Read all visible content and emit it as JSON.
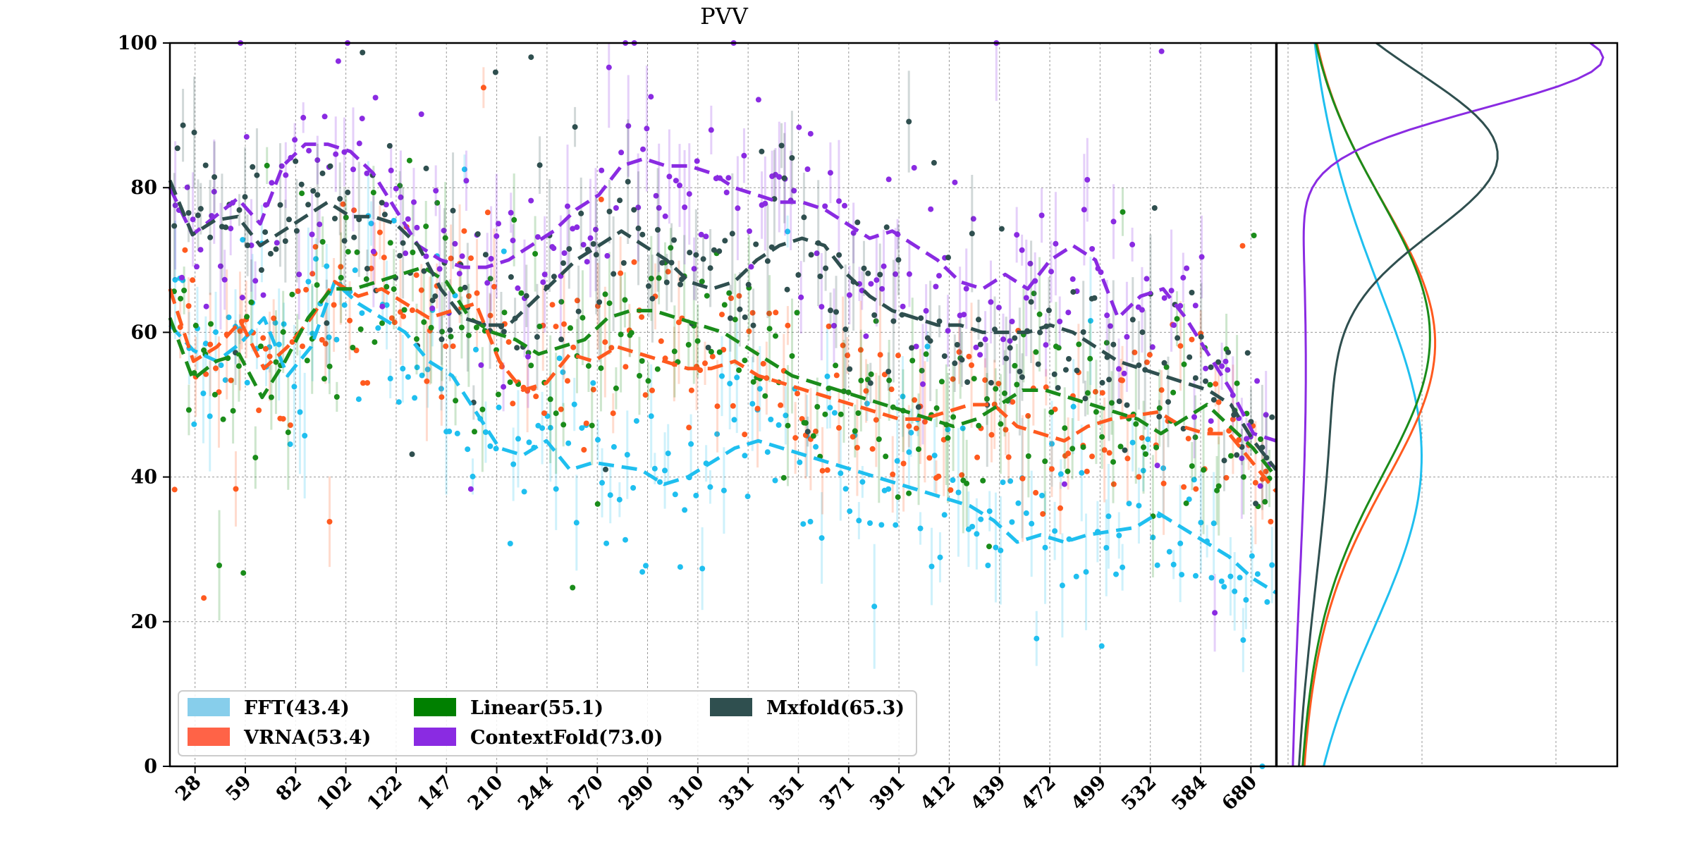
{
  "chart_data": {
    "type": "scatter",
    "title": "PVV",
    "xlabel": "",
    "ylabel": "",
    "ylim": [
      0,
      100
    ],
    "y_ticks": [
      "0",
      "20",
      "40",
      "60",
      "80",
      "100"
    ],
    "x_tick_labels": [
      "28",
      "59",
      "82",
      "102",
      "122",
      "147",
      "210",
      "244",
      "270",
      "290",
      "310",
      "331",
      "351",
      "371",
      "391",
      "412",
      "439",
      "472",
      "499",
      "532",
      "584",
      "680"
    ],
    "grid": true,
    "legend_position": "lower-left",
    "marginal_panel": "kde",
    "series": [
      {
        "name": "FFT(43.4)",
        "color": "#1fbfef",
        "legend_color": "#87ceeb",
        "trend": [
          61.0,
          57.5,
          56.0,
          58.5,
          62.0,
          54.0,
          58.0,
          67.0,
          64.0,
          62.0,
          60.0,
          56.0,
          54.0,
          49.0,
          44.0,
          43.0,
          45.0,
          41.0,
          42.0,
          41.5,
          41.0,
          39.0,
          40.0,
          42.0,
          44.0,
          45.0,
          44.0,
          43.0,
          42.0,
          41.0,
          40.0,
          39.0,
          38.0,
          37.0,
          36.0,
          34.0,
          31.0,
          32.0,
          31.0,
          32.0,
          32.5,
          33.0,
          35.0,
          33.0,
          31.0,
          29.0,
          26.0,
          24.0
        ],
        "kde_peak_y": 40
      },
      {
        "name": "VRNA(53.4)",
        "color": "#ff5a1f",
        "legend_color": "#ff6347",
        "trend": [
          66.0,
          56.0,
          58.0,
          61.5,
          55.0,
          58.0,
          62.0,
          67.0,
          65.0,
          66.0,
          64.0,
          62.0,
          63.0,
          64.0,
          56.0,
          52.0,
          53.0,
          57.0,
          56.0,
          58.0,
          57.0,
          56.0,
          55.0,
          55.0,
          56.0,
          54.0,
          53.0,
          52.0,
          51.0,
          50.0,
          49.0,
          48.0,
          48.0,
          49.0,
          50.0,
          50.0,
          47.0,
          46.0,
          45.0,
          47.0,
          48.0,
          48.5,
          49.0,
          47.0,
          46.0,
          46.0,
          42.0,
          38.0
        ],
        "kde_peak_y": 59
      },
      {
        "name": "Linear(55.1)",
        "color": "#1a8c1a",
        "legend_color": "#008000",
        "trend": [
          62.0,
          53.5,
          56.0,
          57.0,
          51.0,
          56.0,
          62.0,
          66.0,
          66.0,
          67.0,
          68.0,
          69.0,
          67.0,
          62.0,
          60.0,
          59.0,
          57.0,
          58.0,
          59.0,
          62.0,
          63.0,
          63.0,
          62.0,
          61.0,
          60.0,
          58.0,
          56.0,
          54.0,
          53.0,
          52.0,
          51.0,
          50.0,
          49.0,
          48.0,
          47.0,
          48.0,
          50.0,
          52.0,
          52.0,
          51.0,
          50.0,
          49.0,
          48.0,
          46.0,
          48.0,
          50.0,
          47.0,
          44.0,
          40.0
        ],
        "kde_peak_y": 60
      },
      {
        "name": "ContextFold(73.0)",
        "color": "#8a2be2",
        "legend_color": "#8a2be2",
        "trend": [
          80.0,
          73.5,
          76.0,
          78.5,
          75.0,
          83.0,
          86.0,
          86.0,
          85.0,
          82.0,
          77.0,
          72.0,
          70.0,
          69.0,
          69.0,
          70.0,
          72.0,
          74.0,
          77.0,
          79.0,
          83.0,
          84.0,
          83.0,
          83.0,
          82.0,
          80.0,
          79.0,
          78.0,
          78.0,
          77.0,
          75.0,
          73.0,
          74.0,
          72.0,
          70.0,
          67.0,
          66.0,
          68.0,
          66.0,
          70.0,
          72.0,
          70.0,
          62.0,
          65.0,
          66.0,
          62.0,
          57.0,
          52.0,
          46.0,
          45.0
        ],
        "kde_peak_y": 98
      },
      {
        "name": "Mxfold(65.3)",
        "color": "#2f4f4f",
        "legend_color": "#2f4f4f",
        "trend": [
          81.0,
          73.5,
          75.5,
          76.0,
          72.0,
          74.0,
          76.0,
          78.0,
          76.0,
          76.0,
          75.0,
          72.0,
          66.0,
          62.0,
          61.0,
          61.0,
          64.0,
          67.0,
          70.0,
          72.0,
          74.0,
          72.0,
          70.0,
          67.0,
          66.0,
          67.0,
          70.0,
          72.0,
          73.0,
          72.0,
          68.0,
          65.0,
          63.0,
          62.0,
          61.0,
          61.0,
          60.0,
          60.0,
          60.0,
          61.0,
          60.0,
          58.0,
          56.0,
          55.0,
          54.0,
          53.0,
          52.0,
          50.0,
          45.0,
          41.0
        ],
        "kde_peak_y": 85
      }
    ]
  }
}
